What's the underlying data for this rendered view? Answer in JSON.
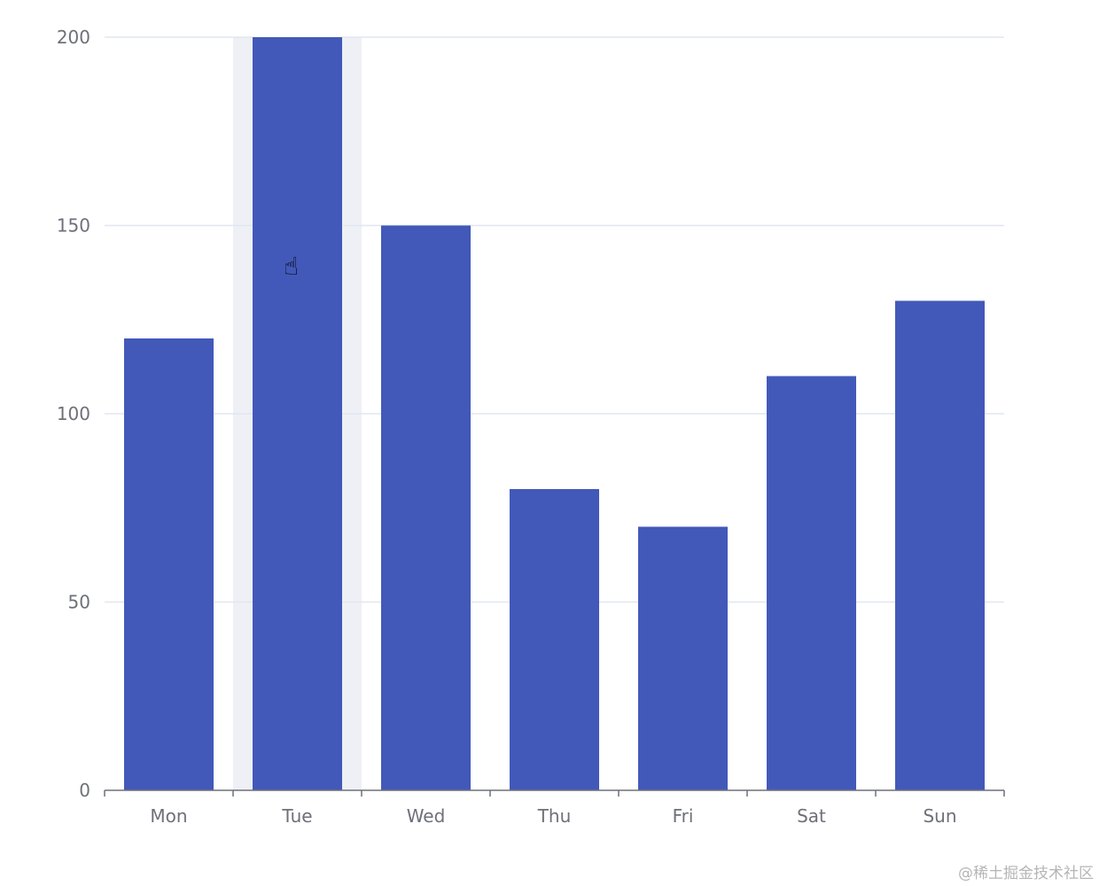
{
  "chart_data": {
    "type": "bar",
    "categories": [
      "Mon",
      "Tue",
      "Wed",
      "Thu",
      "Fri",
      "Sat",
      "Sun"
    ],
    "values": [
      120,
      200,
      150,
      80,
      70,
      110,
      130
    ],
    "ylim": [
      0,
      200
    ],
    "yticks": [
      0,
      50,
      100,
      150,
      200
    ],
    "grid": true,
    "hovered_category": "Tue",
    "colors": {
      "bar": "#4259b9",
      "grid": "#e0e6f1",
      "axis": "#6e7079",
      "hover_band": "#eef0f6"
    }
  },
  "watermark": "@稀土掘金技术社区",
  "cursor_icon": "hand-pointer-icon"
}
